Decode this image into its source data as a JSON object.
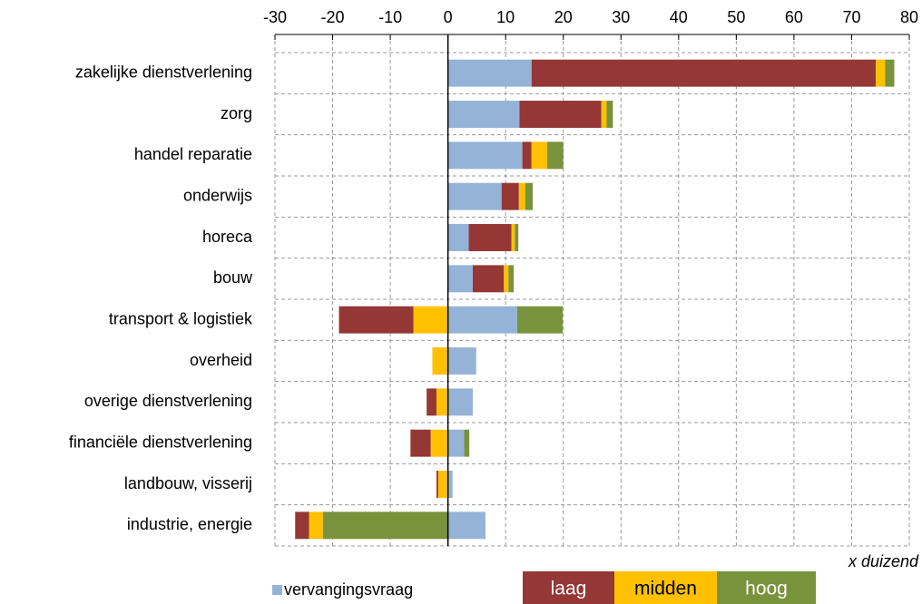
{
  "chart_data": {
    "type": "bar",
    "orientation": "horizontal",
    "stacked": true,
    "categories": [
      "zakelijke dienstverlening",
      "zorg",
      "handel reparatie",
      "onderwijs",
      "horeca",
      "bouw",
      "transport & logistiek",
      "overheid",
      "overige dienstverlening",
      "financiële dienstverlening",
      "landbouw, visserij",
      "industrie, energie"
    ],
    "series": [
      {
        "name": "vervangingsvraag",
        "color": "#95b3d7",
        "values": [
          14.5,
          12.4,
          12.9,
          9.3,
          3.6,
          4.3,
          12.0,
          4.9,
          4.3,
          2.8,
          0.8,
          6.5
        ]
      },
      {
        "name": "laag",
        "color": "#953735",
        "values": [
          59.7,
          14.2,
          1.6,
          3.0,
          7.4,
          5.4,
          -12.9,
          0,
          -1.7,
          -3.5,
          -0.3,
          -2.4
        ]
      },
      {
        "name": "midden",
        "color": "#ffc000",
        "values": [
          1.6,
          0.9,
          2.7,
          1.1,
          0.6,
          0.8,
          -6.0,
          -2.7,
          -2.0,
          -3.0,
          -1.7,
          -2.4
        ]
      },
      {
        "name": "hoog",
        "color": "#77933c",
        "values": [
          1.6,
          1.1,
          2.8,
          1.3,
          0.6,
          0.9,
          7.9,
          0,
          0,
          0.9,
          0,
          -21.7
        ]
      }
    ],
    "xlim": [
      -30,
      80
    ],
    "xticks": [
      -30,
      -20,
      -10,
      0,
      10,
      20,
      30,
      40,
      50,
      60,
      70,
      80
    ],
    "annotation": "x duizend",
    "grid": true
  }
}
